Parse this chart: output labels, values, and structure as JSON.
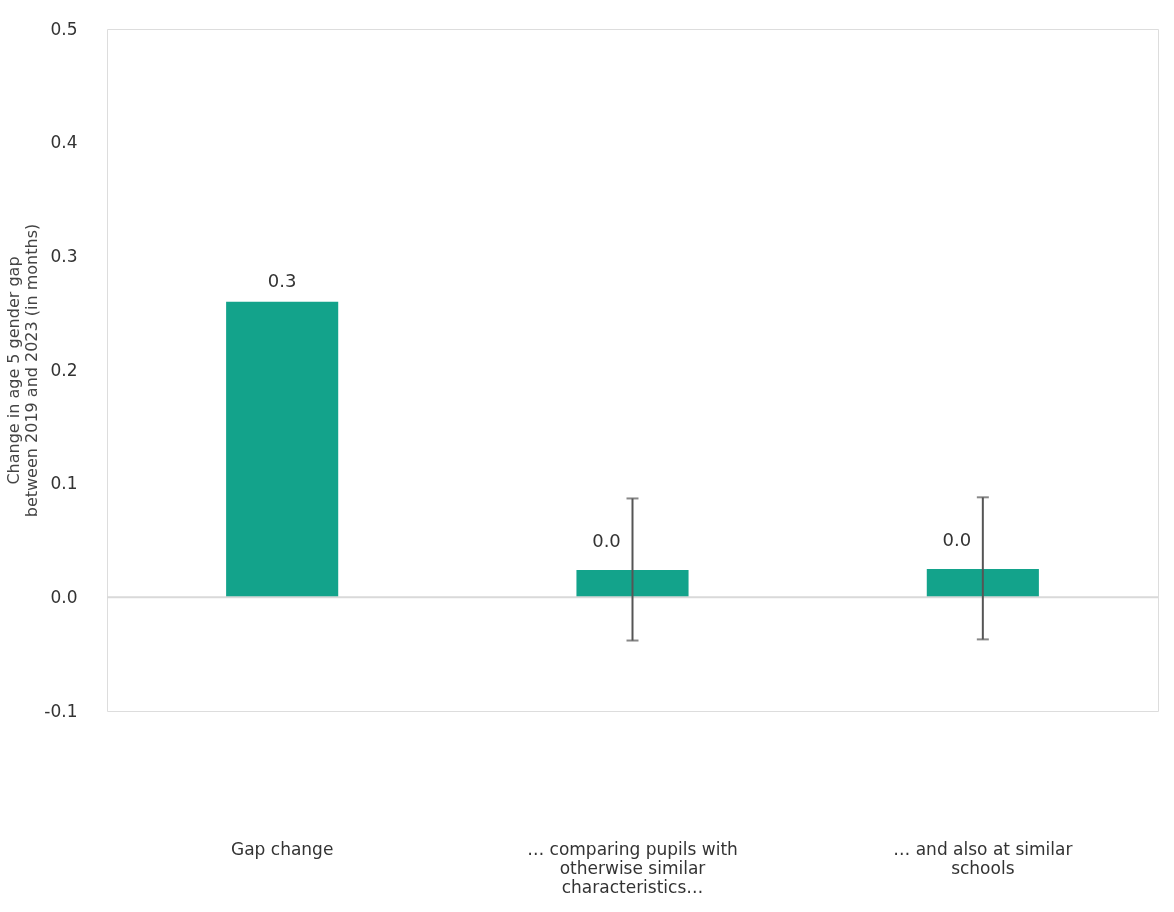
{
  "chart_data": {
    "type": "bar",
    "ylabel": "Change in age 5 gender gap between 2019 and 2023 (in months)",
    "categories": [
      "Gap change",
      "… comparing pupils with otherwise similar characteristics…",
      "… and also at similar schools"
    ],
    "values": [
      0.26,
      0.024,
      0.025
    ],
    "errors": [
      null,
      [
        -0.038,
        0.087
      ],
      [
        -0.037,
        0.088
      ]
    ],
    "value_labels": [
      "0.3",
      "0.0",
      "0.0"
    ],
    "color": "#13a38b",
    "ylim": [
      -0.1,
      0.5
    ],
    "yticks": [
      {
        "value": -0.1,
        "label": "-0.1"
      },
      {
        "value": 0,
        "label": "0.0"
      },
      0.1,
      0.2,
      0.3,
      0.4,
      0.5
    ],
    "ref_lines": [
      {
        "axis": "y",
        "value": 0,
        "color": "#d9d9d9"
      }
    ],
    "grid": false
  }
}
